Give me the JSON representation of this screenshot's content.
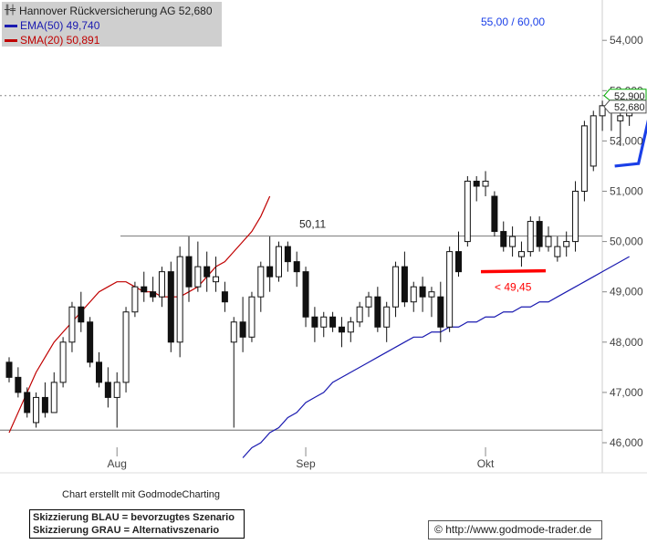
{
  "legend": {
    "title": "Hannover Rückversicherung AG 52,680",
    "ema_label": "EMA(50) 49,740",
    "sma_label": "SMA(20) 50,891",
    "ema_color": "#1a1ab0",
    "sma_color": "#c00000"
  },
  "credit": "Chart erstellt mit GodmodeCharting",
  "notes": {
    "line1": "Skizzierung BLAU = bevorzugtes Szenario",
    "line2": "Skizzierung GRAU = Alternativszenario"
  },
  "url": "http://www.godmode-trader.de",
  "copyright_symbol": "©",
  "chart_data": {
    "type": "candlestick",
    "y_ticks": [
      "46,000",
      "47,000",
      "48,000",
      "49,000",
      "50,000",
      "51,000",
      "52,000",
      "53,000",
      "54,000",
      "55,000"
    ],
    "ylim": [
      45.6,
      55.6
    ],
    "x_ticks": [
      "Aug",
      "Sep",
      "Okt"
    ],
    "x_tick_index": [
      12,
      33,
      53
    ],
    "price_badges": [
      "52,900",
      "52,680"
    ],
    "annotations": {
      "resistance_label": "50,11",
      "resistance_level": 50.11,
      "support_level": 46.25,
      "target_label": "55,00 / 60,00",
      "stop_label": "< 49,45",
      "stop_level": 49.4,
      "reference_level": 52.9
    },
    "colors": {
      "ema": "#1a1ab0",
      "sma": "#c00000",
      "target": "#1a3fe8",
      "stop": "#ff0000"
    },
    "candles": [
      [
        47.6,
        47.7,
        47.2,
        47.3
      ],
      [
        47.3,
        47.5,
        46.9,
        47.0
      ],
      [
        47.0,
        47.1,
        46.5,
        46.6
      ],
      [
        46.4,
        47.0,
        46.3,
        46.9
      ],
      [
        46.9,
        47.2,
        46.5,
        46.6
      ],
      [
        46.6,
        47.4,
        46.6,
        47.2
      ],
      [
        47.2,
        48.1,
        47.1,
        48.0
      ],
      [
        48.0,
        48.8,
        47.8,
        48.7
      ],
      [
        48.7,
        49.0,
        48.2,
        48.4
      ],
      [
        48.4,
        48.5,
        47.5,
        47.6
      ],
      [
        47.6,
        47.8,
        47.1,
        47.2
      ],
      [
        47.2,
        47.5,
        46.7,
        46.9
      ],
      [
        46.9,
        47.4,
        46.3,
        47.2
      ],
      [
        47.2,
        48.7,
        47.0,
        48.6
      ],
      [
        48.6,
        49.2,
        48.5,
        49.1
      ],
      [
        49.1,
        49.4,
        48.8,
        49.0
      ],
      [
        49.0,
        49.3,
        48.8,
        48.9
      ],
      [
        48.9,
        49.5,
        48.7,
        49.4
      ],
      [
        49.4,
        49.6,
        47.8,
        48.0
      ],
      [
        48.0,
        49.9,
        47.7,
        49.7
      ],
      [
        49.7,
        50.1,
        48.8,
        49.1
      ],
      [
        49.1,
        50.0,
        49.0,
        49.5
      ],
      [
        49.5,
        49.8,
        49.0,
        49.3
      ],
      [
        49.2,
        49.7,
        49.0,
        49.3
      ],
      [
        49.0,
        49.2,
        48.6,
        48.8
      ],
      [
        48.0,
        48.5,
        46.3,
        48.4
      ],
      [
        48.4,
        48.9,
        47.8,
        48.1
      ],
      [
        48.1,
        49.0,
        48.0,
        48.9
      ],
      [
        48.9,
        49.6,
        48.6,
        49.5
      ],
      [
        49.5,
        50.1,
        49.0,
        49.3
      ],
      [
        49.3,
        50.0,
        49.2,
        49.9
      ],
      [
        49.9,
        50.0,
        49.4,
        49.6
      ],
      [
        49.6,
        49.8,
        49.1,
        49.4
      ],
      [
        49.4,
        49.5,
        48.3,
        48.5
      ],
      [
        48.5,
        48.7,
        48.0,
        48.3
      ],
      [
        48.3,
        48.6,
        48.1,
        48.5
      ],
      [
        48.5,
        48.6,
        48.2,
        48.3
      ],
      [
        48.3,
        48.5,
        47.9,
        48.2
      ],
      [
        48.2,
        48.5,
        48.0,
        48.4
      ],
      [
        48.4,
        48.8,
        48.3,
        48.7
      ],
      [
        48.7,
        49.0,
        48.5,
        48.9
      ],
      [
        48.9,
        49.1,
        48.2,
        48.3
      ],
      [
        48.3,
        48.8,
        48.0,
        48.7
      ],
      [
        48.7,
        49.6,
        48.5,
        49.5
      ],
      [
        49.5,
        49.8,
        48.7,
        48.8
      ],
      [
        48.8,
        49.2,
        48.6,
        49.1
      ],
      [
        49.1,
        49.3,
        48.6,
        48.9
      ],
      [
        48.9,
        49.1,
        48.5,
        49.0
      ],
      [
        48.9,
        49.2,
        48.0,
        48.3
      ],
      [
        48.3,
        49.9,
        48.2,
        49.8
      ],
      [
        49.8,
        50.2,
        49.3,
        49.4
      ]
    ],
    "candles2": [
      [
        50.0,
        51.3,
        49.9,
        51.2
      ],
      [
        51.2,
        51.3,
        50.8,
        51.1
      ],
      [
        51.1,
        51.4,
        50.9,
        51.2
      ],
      [
        50.9,
        51.0,
        50.1,
        50.2
      ],
      [
        50.2,
        50.4,
        49.8,
        49.9
      ],
      [
        49.9,
        50.3,
        49.7,
        50.1
      ],
      [
        49.7,
        50.0,
        49.5,
        49.8
      ],
      [
        49.8,
        50.5,
        49.7,
        50.4
      ],
      [
        50.4,
        50.5,
        49.8,
        49.9
      ],
      [
        49.9,
        50.3,
        49.8,
        50.1
      ],
      [
        49.7,
        50.1,
        49.6,
        49.9
      ],
      [
        49.9,
        50.2,
        49.7,
        50.0
      ],
      [
        50.0,
        51.2,
        49.8,
        51.0
      ],
      [
        51.0,
        52.4,
        50.8,
        52.3
      ],
      [
        51.5,
        52.6,
        51.4,
        52.5
      ],
      [
        52.5,
        52.8,
        52.2,
        52.7
      ],
      [
        52.6,
        52.8,
        52.2,
        52.7
      ],
      [
        52.4,
        52.8,
        51.9,
        52.5
      ],
      [
        52.5,
        52.9,
        52.3,
        52.7
      ]
    ],
    "ema": [
      45.7,
      45.9,
      46.0,
      46.2,
      46.3,
      46.5,
      46.6,
      46.8,
      46.9,
      47.0,
      47.2,
      47.3,
      47.4,
      47.5,
      47.6,
      47.7,
      47.8,
      47.9,
      48.0,
      48.1,
      48.1,
      48.2,
      48.2,
      48.3,
      48.3,
      48.4,
      48.4,
      48.5,
      48.5,
      48.6,
      48.6,
      48.7,
      48.7,
      48.8,
      48.8,
      48.9,
      49.0,
      49.1,
      49.2,
      49.3,
      49.4,
      49.5,
      49.6,
      49.7
    ],
    "sma": [
      46.2,
      46.6,
      47.0,
      47.4,
      47.7,
      48.0,
      48.2,
      48.4,
      48.6,
      48.8,
      49.0,
      49.1,
      49.2,
      49.2,
      49.1,
      49.0,
      49.0,
      48.9,
      48.9,
      48.9,
      49.0,
      49.1,
      49.3,
      49.5,
      49.6,
      49.8,
      50.0,
      50.2,
      50.5,
      50.9
    ]
  }
}
